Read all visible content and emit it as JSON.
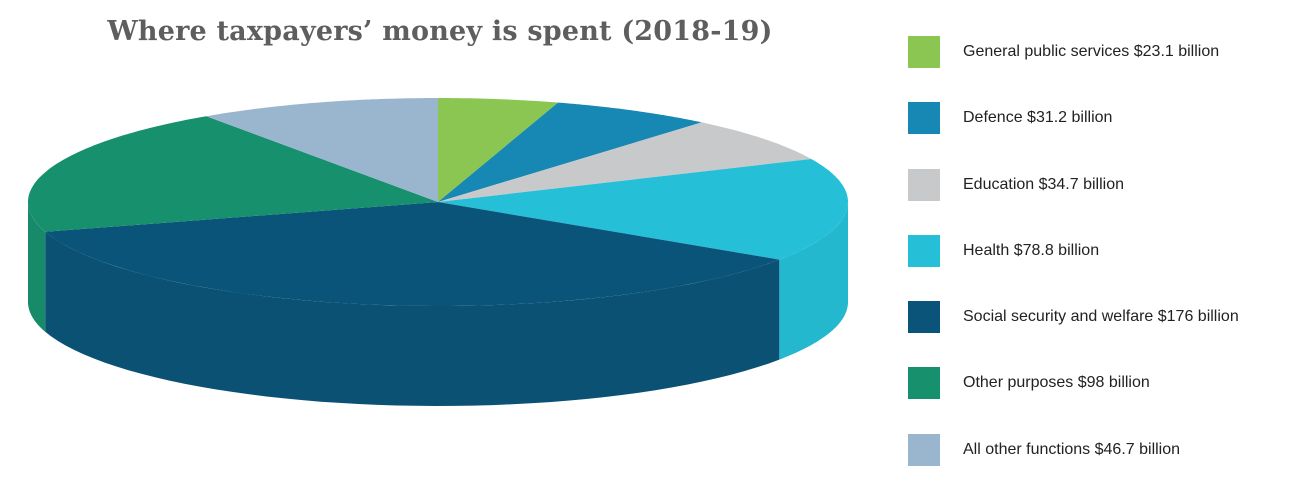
{
  "chart_data": {
    "type": "pie",
    "title": "Where taxpayers’ money is spent (2018-19)",
    "legend_position": "right",
    "unit": "billion",
    "slices": [
      {
        "name": "General public services",
        "value": 23.1,
        "label": "General public services $23.1 billion",
        "color": "#8bc653"
      },
      {
        "name": "Defence",
        "value": 31.2,
        "label": "Defence $31.2 billion",
        "color": "#1787b4"
      },
      {
        "name": "Education",
        "value": 34.7,
        "label": "Education $34.7 billion",
        "color": "#c8c9cb"
      },
      {
        "name": "Health",
        "value": 78.8,
        "label": "Health $78.8 billion",
        "color": "#25c0d8"
      },
      {
        "name": "Social security and welfare",
        "value": 176,
        "label": "Social security and welfare $176 billion",
        "color": "#0b5479"
      },
      {
        "name": "Other purposes",
        "value": 98,
        "label": "Other purposes $98 billion",
        "color": "#17906d"
      },
      {
        "name": "All other functions",
        "value": 46.7,
        "label": "All other functions $46.7 billion",
        "color": "#9ab6cf"
      }
    ]
  }
}
